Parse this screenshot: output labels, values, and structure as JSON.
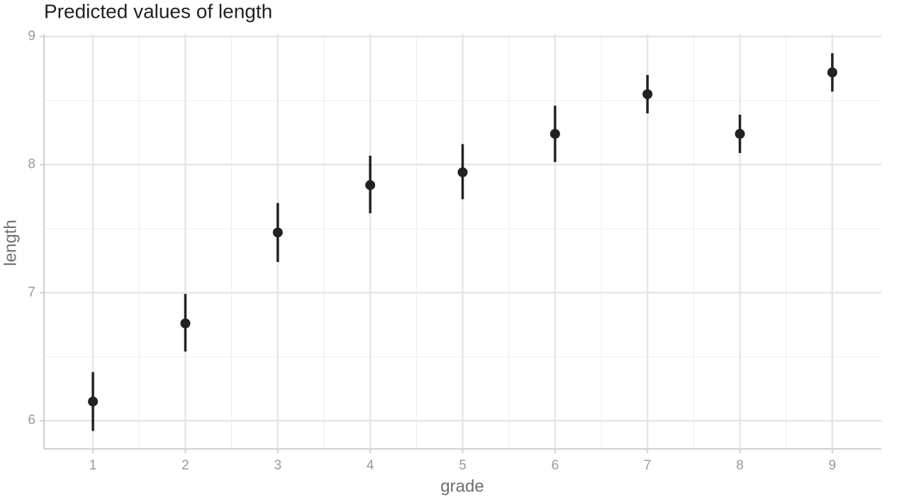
{
  "chart_data": {
    "type": "pointrange",
    "title": "Predicted values of length",
    "x_label": "grade",
    "y_label": "length",
    "x": [
      1,
      2,
      3,
      4,
      5,
      6,
      7,
      8,
      9
    ],
    "values": [
      6.15,
      6.76,
      7.47,
      7.84,
      7.94,
      8.24,
      8.55,
      8.24,
      8.72
    ],
    "lower": [
      5.92,
      6.54,
      7.24,
      7.62,
      7.73,
      8.02,
      8.4,
      8.09,
      8.57
    ],
    "upper": [
      6.38,
      6.99,
      7.7,
      8.07,
      8.16,
      8.46,
      8.7,
      8.39,
      8.87
    ],
    "color": "#222222",
    "xlim": [
      0.47,
      9.53
    ],
    "ylim": [
      5.78,
      9.02
    ],
    "xticks": [
      1,
      2,
      3,
      4,
      5,
      6,
      7,
      8,
      9
    ],
    "yticks": [
      6,
      7,
      8,
      9
    ],
    "grid": true
  }
}
